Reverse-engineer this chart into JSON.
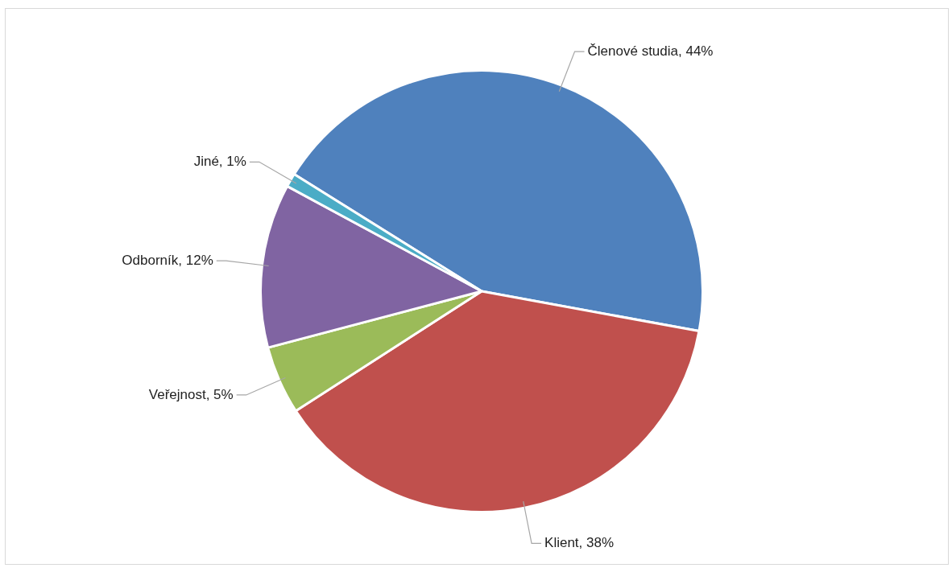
{
  "chart_data": {
    "type": "pie",
    "categories": [
      "Členové studia",
      "Klient",
      "Veřejnost",
      "Odborník",
      "Jiné"
    ],
    "values": [
      44,
      38,
      5,
      12,
      1
    ],
    "value_labels": [
      ", 44%",
      ", 38%",
      ", 5%",
      ", 12%",
      ", 1%"
    ],
    "colors": [
      "#4f81bd",
      "#c0504d",
      "#9bbb59",
      "#8064a2",
      "#4bacc6"
    ],
    "legend": false
  }
}
